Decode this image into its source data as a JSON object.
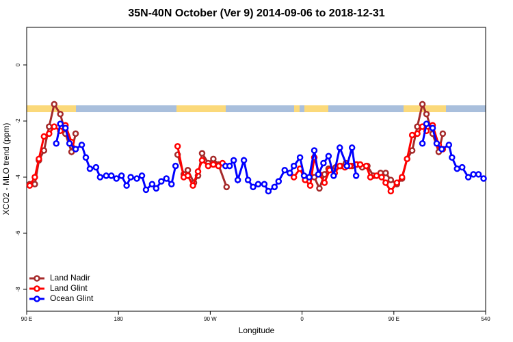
{
  "chart_data": {
    "type": "line",
    "title": "35N-40N October (Ver 9)   2014-09-06 to 2018-12-31",
    "xlabel": "Longitude",
    "ylabel": "XCO2 - MLO trend (ppm)",
    "xlim": [
      90,
      540
    ],
    "xticks": [
      {
        "value": 90,
        "label": "90 E"
      },
      180,
      {
        "value": 270,
        "label": "90 W"
      },
      {
        "value": 360,
        "label": "0"
      },
      {
        "value": 450,
        "label": "90 E"
      },
      540
    ],
    "ylim": [
      -8.78,
      1.34
    ],
    "yticks": [
      0,
      -2,
      -4,
      -6,
      -8
    ],
    "legend": "bottom-left",
    "series": [
      {
        "name": "Land Nadir",
        "color": "#a52a2a",
        "x": [
          93,
          98,
          102,
          107,
          112,
          117,
          123,
          128,
          134,
          138,
          null,
          238,
          244,
          248,
          254,
          258,
          262,
          268,
          273,
          278,
          286,
          null,
          372,
          377,
          382,
          386,
          393,
          398,
          403,
          409,
          414,
          419,
          424,
          430,
          437,
          442,
          447,
          453,
          458,
          463,
          468,
          473,
          478,
          482,
          488,
          494,
          498
        ],
        "values": [
          -4.25,
          -4.25,
          -3.4,
          -3.05,
          -2.2,
          -1.4,
          -1.75,
          -2.45,
          -3.1,
          -2.45,
          null,
          -3.2,
          -3.9,
          -3.75,
          -4.2,
          -3.95,
          -3.15,
          -3.5,
          -3.35,
          -3.55,
          -4.35,
          null,
          -4.0,
          -4.4,
          -3.9,
          -3.7,
          -3.65,
          -3.6,
          -3.5,
          -3.6,
          -3.55,
          -3.65,
          -3.6,
          -3.95,
          -3.85,
          -3.85,
          -4.1,
          -4.25,
          -4.05,
          -3.35,
          -3.05,
          -2.2,
          -1.4,
          -1.75,
          -2.45,
          -3.1,
          -2.45
        ]
      },
      {
        "name": "Land Glint",
        "color": "#ff0000",
        "x": [
          93,
          98,
          102,
          107,
          112,
          117,
          123,
          128,
          134,
          138,
          null,
          238,
          244,
          248,
          253,
          258,
          262,
          268,
          273,
          278,
          282,
          null,
          352,
          358,
          363,
          368,
          372,
          377,
          382,
          387,
          392,
          397,
          402,
          407,
          413,
          417,
          423,
          427,
          433,
          438,
          442,
          447,
          453,
          458,
          463,
          468,
          473,
          478,
          482,
          488,
          494,
          498
        ],
        "values": [
          -4.3,
          -4.0,
          -3.35,
          -2.55,
          -2.45,
          -2.2,
          -2.35,
          -2.15,
          -2.75,
          -3.0,
          null,
          -2.9,
          -4.0,
          -3.95,
          -4.3,
          -3.8,
          -3.4,
          -3.6,
          -3.55,
          -3.6,
          -3.5,
          null,
          -4.0,
          -3.7,
          -4.1,
          -4.3,
          -3.3,
          -3.9,
          -4.2,
          -3.75,
          -3.85,
          -3.6,
          -3.65,
          -3.6,
          -3.55,
          -3.55,
          -3.6,
          -4.0,
          -3.95,
          -4.0,
          -4.2,
          -4.5,
          -4.2,
          -4.0,
          -3.35,
          -2.5,
          -2.45,
          -2.2,
          -2.35,
          -2.15,
          -2.85,
          -3.0
        ]
      },
      {
        "name": "Ocean Glint",
        "color": "#0000ff",
        "x": [
          119,
          123,
          128,
          132,
          138,
          144,
          148,
          152,
          158,
          162,
          168,
          173,
          178,
          183,
          188,
          192,
          198,
          203,
          207,
          213,
          217,
          222,
          227,
          232,
          236,
          null,
          285,
          289,
          293,
          297,
          303,
          307,
          312,
          317,
          323,
          327,
          333,
          337,
          343,
          348,
          352,
          358,
          362,
          367,
          372,
          376,
          381,
          386,
          391,
          397,
          404,
          409,
          413,
          null,
          478,
          482,
          488,
          492,
          497,
          504,
          507,
          512,
          517,
          523,
          528,
          533,
          538
        ],
        "values": [
          -2.8,
          -2.1,
          -2.25,
          -2.8,
          -3.0,
          -2.85,
          -3.3,
          -3.7,
          -3.65,
          -4.0,
          -3.95,
          -3.95,
          -4.05,
          -3.95,
          -4.3,
          -4.0,
          -4.05,
          -3.95,
          -4.45,
          -4.25,
          -4.4,
          -4.15,
          -4.05,
          -4.25,
          -3.6,
          null,
          -3.6,
          -3.6,
          -3.4,
          -4.1,
          -3.4,
          -4.1,
          -4.35,
          -4.25,
          -4.25,
          -4.5,
          -4.35,
          -4.15,
          -3.75,
          -3.85,
          -3.6,
          -3.3,
          -3.95,
          -4.0,
          -3.05,
          -3.9,
          -3.5,
          -3.25,
          -3.95,
          -2.95,
          -3.6,
          -2.95,
          -3.95,
          null,
          -2.8,
          -2.1,
          -2.25,
          -2.8,
          -3.0,
          -2.85,
          -3.3,
          -3.7,
          -3.65,
          -4.0,
          -3.9,
          -3.9,
          -4.05
        ]
      }
    ]
  }
}
